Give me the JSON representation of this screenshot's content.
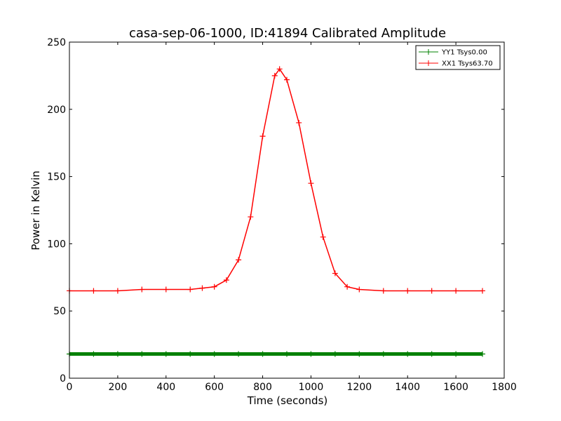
{
  "chart_data": {
    "type": "line",
    "title": "casa-sep-06-1000, ID:41894 Calibrated Amplitude",
    "xlabel": "Time (seconds)",
    "ylabel": "Power in Kelvin",
    "xlim": [
      0,
      1800
    ],
    "ylim": [
      0,
      250
    ],
    "xticks": [
      0,
      200,
      400,
      600,
      800,
      1000,
      1200,
      1400,
      1600,
      1800
    ],
    "yticks": [
      0,
      50,
      100,
      150,
      200,
      250
    ],
    "grid": false,
    "legend_position": "top-right",
    "series": [
      {
        "name": "YY1 Tsys0.00",
        "color": "#008000",
        "marker": "+",
        "x": [
          0,
          100,
          200,
          300,
          400,
          500,
          600,
          700,
          800,
          900,
          1000,
          1100,
          1200,
          1300,
          1400,
          1500,
          1600,
          1710
        ],
        "y": [
          18,
          18,
          18,
          18,
          18,
          18,
          18,
          18,
          18,
          18,
          18,
          18,
          18,
          18,
          18,
          18,
          18,
          18
        ]
      },
      {
        "name": "XX1 Tsys63.70",
        "color": "#ff0000",
        "marker": "+",
        "x": [
          0,
          100,
          200,
          300,
          400,
          500,
          550,
          600,
          650,
          700,
          750,
          800,
          850,
          870,
          900,
          950,
          1000,
          1050,
          1100,
          1150,
          1200,
          1300,
          1400,
          1500,
          1600,
          1710
        ],
        "y": [
          65,
          65,
          65,
          66,
          66,
          66,
          67,
          68,
          73,
          88,
          120,
          180,
          225,
          230,
          222,
          190,
          145,
          105,
          78,
          68,
          66,
          65,
          65,
          65,
          65,
          65
        ]
      }
    ]
  }
}
